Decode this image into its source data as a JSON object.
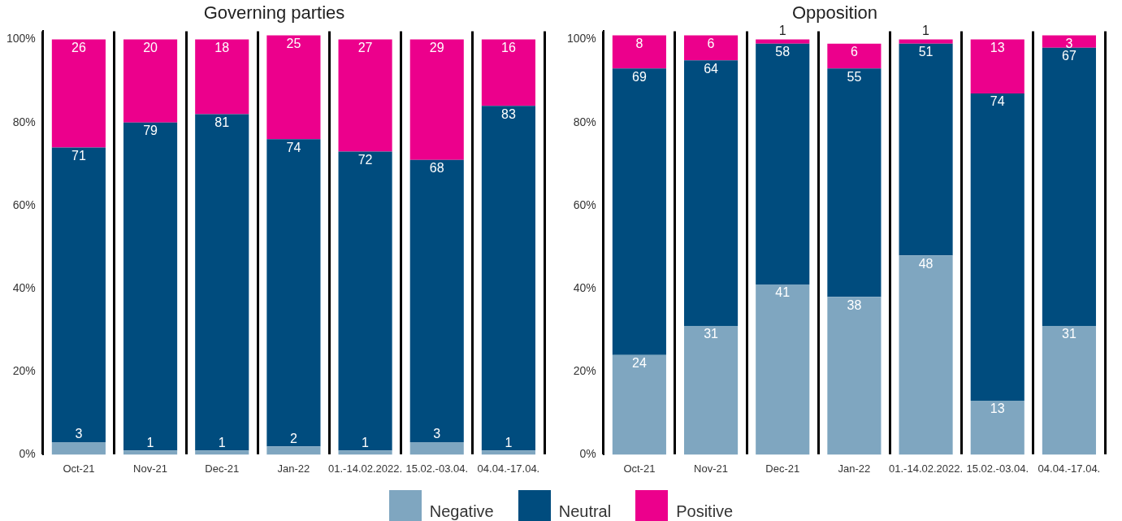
{
  "chart_data": [
    {
      "type": "bar",
      "title": "Governing parties",
      "stacked": true,
      "data_labels": true,
      "grid": "x",
      "legend": "bottom",
      "categories": [
        "Oct-21",
        "Nov-21",
        "Dec-21",
        "Jan-22",
        "01.-14.02.2022.",
        "15.02.-03.04.",
        "04.04.-17.04."
      ],
      "series": [
        {
          "name": "Negative",
          "color": "#7fa6c0",
          "values": [
            3,
            1,
            1,
            2,
            1,
            3,
            1
          ]
        },
        {
          "name": "Neutral",
          "color": "#004c7e",
          "values": [
            71,
            79,
            81,
            74,
            72,
            68,
            83
          ]
        },
        {
          "name": "Positive",
          "color": "#ec008c",
          "values": [
            26,
            20,
            18,
            25,
            27,
            29,
            16
          ]
        }
      ],
      "ylim": [
        0,
        102
      ],
      "yticks": [
        {
          "value": 0,
          "label": "0%"
        },
        {
          "value": 20,
          "label": "20%"
        },
        {
          "value": 40,
          "label": "40%"
        },
        {
          "value": 60,
          "label": "60%"
        },
        {
          "value": 80,
          "label": "80%"
        },
        {
          "value": 100,
          "label": "100%"
        }
      ]
    },
    {
      "type": "bar",
      "title": "Opposition",
      "stacked": true,
      "data_labels": true,
      "grid": "x",
      "categories": [
        "Oct-21",
        "Nov-21",
        "Dec-21",
        "Jan-22",
        "01.-14.02.2022.",
        "15.02.-03.04.",
        "04.04.-17.04."
      ],
      "series": [
        {
          "color": "#7fa6c0",
          "values": [
            24,
            31,
            41,
            38,
            48,
            13,
            31
          ]
        },
        {
          "color": "#004c7e",
          "values": [
            69,
            64,
            58,
            55,
            51,
            74,
            67
          ]
        },
        {
          "color": "#ec008c",
          "values": [
            8,
            6,
            1,
            6,
            1,
            13,
            3
          ]
        }
      ],
      "ylim": [
        0,
        102
      ],
      "yticks": [
        {
          "value": 0,
          "label": "0%"
        },
        {
          "value": 20,
          "label": "20%"
        },
        {
          "value": 40,
          "label": "40%"
        },
        {
          "value": 60,
          "label": "60%"
        },
        {
          "value": 80,
          "label": "80%"
        },
        {
          "value": 100,
          "label": "100%"
        }
      ]
    }
  ]
}
